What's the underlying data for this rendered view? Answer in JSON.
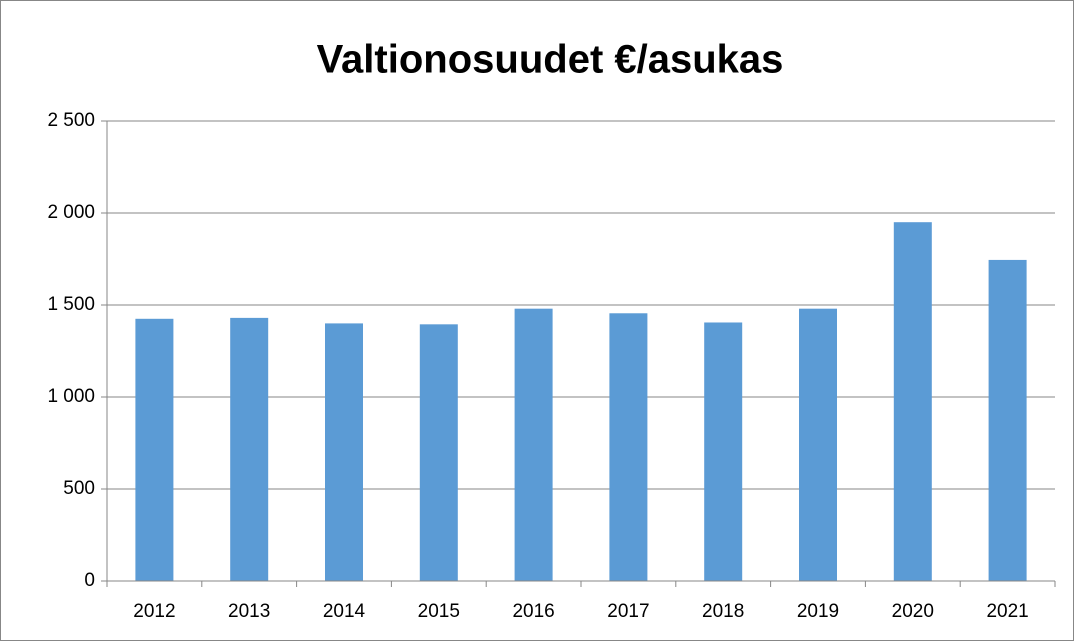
{
  "chart_data": {
    "type": "bar",
    "title": "Valtionosuudet €/asukas",
    "categories": [
      "2012",
      "2013",
      "2014",
      "2015",
      "2016",
      "2017",
      "2018",
      "2019",
      "2020",
      "2021"
    ],
    "values": [
      1425,
      1430,
      1400,
      1395,
      1480,
      1455,
      1405,
      1480,
      1950,
      1745
    ],
    "color": "#5b9bd5",
    "ylim": [
      0,
      2500
    ],
    "yticks": [
      0,
      500,
      {
        "value": 1000,
        "label": "1 000"
      },
      {
        "value": 1500,
        "label": "1 500"
      },
      {
        "value": 2000,
        "label": "2 000"
      },
      {
        "value": 2500,
        "label": "2 500"
      }
    ],
    "grid": true
  }
}
